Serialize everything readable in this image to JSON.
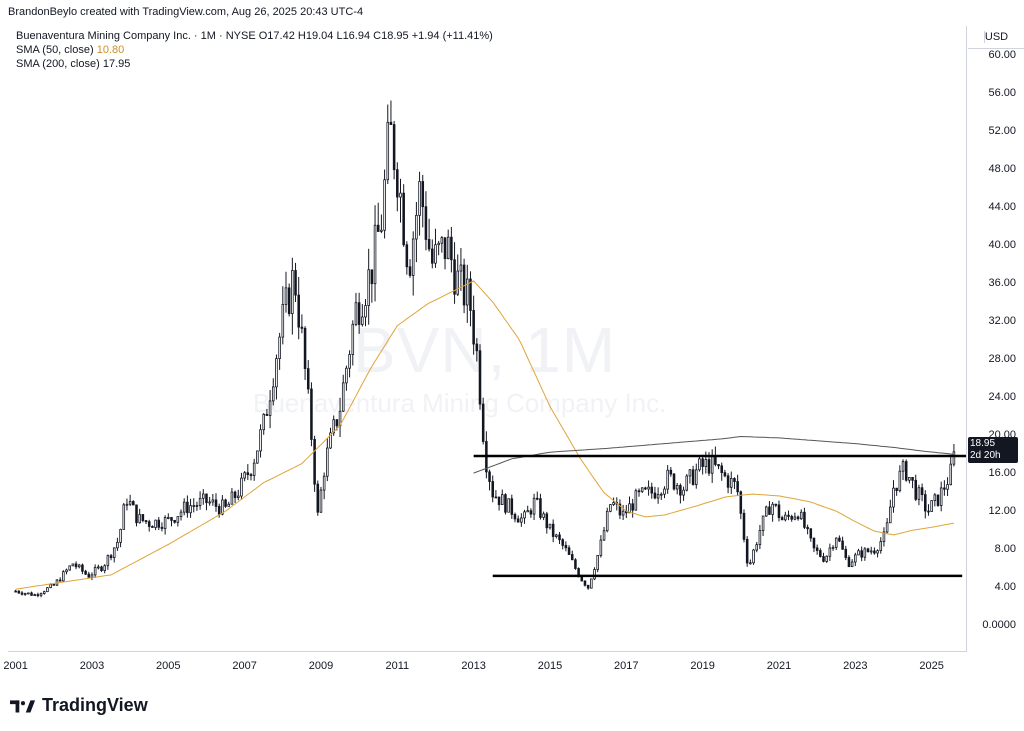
{
  "header": {
    "credit": "BrandonBeylo created with TradingView.com, Aug 26, 2025 20:43 UTC-4"
  },
  "legend": {
    "symbol": "Buenaventura Mining Company Inc. · 1M · NYSE",
    "ohlc": {
      "o_label": "O",
      "o": "17.42",
      "h_label": "H",
      "h": "19.04",
      "l_label": "L",
      "l": "16.94",
      "c_label": "C",
      "c": "18.95",
      "change": "+1.94 (+11.41%)"
    },
    "sma50_label": "SMA (50, close)",
    "sma50_value": "10.80",
    "sma200_label": "SMA (200, close)",
    "sma200_value": "17.95"
  },
  "watermark": {
    "ticker": "BVN, 1M",
    "name": "Buenaventura Mining Company Inc."
  },
  "currency": "USD",
  "price_label": {
    "price": "18.95",
    "countdown": "2d 20h"
  },
  "brand": {
    "name": "TradingView"
  },
  "colors": {
    "candle": "#131722",
    "sma50": "#e0a43a",
    "sma200": "#555555",
    "line": "#000000"
  },
  "chart_data": {
    "type": "candlestick",
    "xlim": [
      2000.8,
      2025.9
    ],
    "ylim": [
      -2.7,
      63.0
    ],
    "x_ticks": [
      "2001",
      "2003",
      "2005",
      "2007",
      "2009",
      "2011",
      "2013",
      "2015",
      "2017",
      "2019",
      "2021",
      "2023",
      "2025"
    ],
    "y_ticks": [
      "60.00",
      "56.00",
      "52.00",
      "48.00",
      "44.00",
      "40.00",
      "36.00",
      "32.00",
      "28.00",
      "24.00",
      "20.00",
      "16.00",
      "12.00",
      "8.00",
      "4.00",
      "0.0000"
    ],
    "close_path": [
      [
        2001.0,
        3.6
      ],
      [
        2001.5,
        3.2
      ],
      [
        2002.0,
        4.2
      ],
      [
        2002.5,
        6.5
      ],
      [
        2002.9,
        5.2
      ],
      [
        2003.3,
        6.3
      ],
      [
        2003.7,
        9.0
      ],
      [
        2003.9,
        13.5
      ],
      [
        2004.2,
        11.2
      ],
      [
        2004.5,
        10.8
      ],
      [
        2005.0,
        11.0
      ],
      [
        2005.5,
        12.5
      ],
      [
        2006.0,
        13.0
      ],
      [
        2006.5,
        12.2
      ],
      [
        2006.9,
        14.5
      ],
      [
        2007.2,
        17.0
      ],
      [
        2007.5,
        21.0
      ],
      [
        2007.8,
        28.0
      ],
      [
        2008.0,
        32.0
      ],
      [
        2008.3,
        37.0
      ],
      [
        2008.5,
        30.0
      ],
      [
        2008.8,
        18.0
      ],
      [
        2008.9,
        11.0
      ],
      [
        2009.1,
        17.0
      ],
      [
        2009.5,
        23.0
      ],
      [
        2009.9,
        33.0
      ],
      [
        2010.3,
        37.0
      ],
      [
        2010.6,
        43.0
      ],
      [
        2010.8,
        52.0
      ],
      [
        2011.0,
        48.0
      ],
      [
        2011.3,
        38.0
      ],
      [
        2011.6,
        46.0
      ],
      [
        2011.9,
        38.0
      ],
      [
        2012.3,
        40.0
      ],
      [
        2012.6,
        36.0
      ],
      [
        2012.9,
        34.0
      ],
      [
        2013.1,
        28.0
      ],
      [
        2013.3,
        18.0
      ],
      [
        2013.5,
        14.0
      ],
      [
        2013.9,
        12.5
      ],
      [
        2014.3,
        11.0
      ],
      [
        2014.6,
        13.0
      ],
      [
        2015.0,
        10.0
      ],
      [
        2015.4,
        8.0
      ],
      [
        2015.8,
        5.0
      ],
      [
        2016.0,
        4.0
      ],
      [
        2016.3,
        8.0
      ],
      [
        2016.6,
        13.0
      ],
      [
        2016.9,
        11.5
      ],
      [
        2017.3,
        13.5
      ],
      [
        2017.7,
        14.0
      ],
      [
        2018.1,
        15.5
      ],
      [
        2018.5,
        14.5
      ],
      [
        2018.9,
        16.5
      ],
      [
        2019.2,
        17.0
      ],
      [
        2019.6,
        15.5
      ],
      [
        2019.9,
        14.5
      ],
      [
        2020.2,
        6.0
      ],
      [
        2020.5,
        10.0
      ],
      [
        2020.8,
        13.0
      ],
      [
        2021.1,
        11.0
      ],
      [
        2021.5,
        12.0
      ],
      [
        2021.9,
        8.0
      ],
      [
        2022.2,
        7.0
      ],
      [
        2022.5,
        9.5
      ],
      [
        2022.8,
        6.5
      ],
      [
        2023.1,
        7.5
      ],
      [
        2023.5,
        8.0
      ],
      [
        2023.8,
        9.5
      ],
      [
        2024.0,
        14.5
      ],
      [
        2024.3,
        16.5
      ],
      [
        2024.6,
        14.0
      ],
      [
        2024.9,
        12.0
      ],
      [
        2025.2,
        13.5
      ],
      [
        2025.5,
        16.0
      ],
      [
        2025.65,
        18.95
      ]
    ],
    "sma50_path": [
      [
        2001.0,
        3.8
      ],
      [
        2003.5,
        5.3
      ],
      [
        2005.0,
        8.5
      ],
      [
        2006.5,
        12.0
      ],
      [
        2007.5,
        15.0
      ],
      [
        2008.5,
        17.0
      ],
      [
        2009.5,
        21.0
      ],
      [
        2010.3,
        27.0
      ],
      [
        2011.0,
        31.5
      ],
      [
        2011.8,
        33.8
      ],
      [
        2012.5,
        35.2
      ],
      [
        2013.0,
        36.2
      ],
      [
        2013.5,
        34.0
      ],
      [
        2014.2,
        30.0
      ],
      [
        2015.0,
        23.0
      ],
      [
        2015.8,
        17.5
      ],
      [
        2016.4,
        14.0
      ],
      [
        2017.0,
        12.0
      ],
      [
        2017.5,
        11.4
      ],
      [
        2018.0,
        11.6
      ],
      [
        2018.8,
        12.5
      ],
      [
        2019.6,
        13.5
      ],
      [
        2020.3,
        13.8
      ],
      [
        2021.0,
        13.6
      ],
      [
        2021.8,
        13.0
      ],
      [
        2022.5,
        12.0
      ],
      [
        2023.0,
        10.9
      ],
      [
        2023.5,
        9.9
      ],
      [
        2024.0,
        9.5
      ],
      [
        2024.5,
        10.0
      ],
      [
        2025.0,
        10.3
      ],
      [
        2025.65,
        10.8
      ]
    ],
    "sma200_path": [
      [
        2013.0,
        16.0
      ],
      [
        2014.0,
        17.5
      ],
      [
        2015.0,
        18.2
      ],
      [
        2016.5,
        18.6
      ],
      [
        2018.0,
        19.1
      ],
      [
        2019.5,
        19.6
      ],
      [
        2020.0,
        19.85
      ],
      [
        2021.0,
        19.7
      ],
      [
        2022.0,
        19.4
      ],
      [
        2023.0,
        19.1
      ],
      [
        2024.0,
        18.7
      ],
      [
        2024.8,
        18.3
      ],
      [
        2025.65,
        17.95
      ]
    ],
    "resistance_line": {
      "y": 17.8,
      "x": [
        2013.0,
        2025.9
      ]
    },
    "support_line": {
      "y": 5.2,
      "x": [
        2013.5,
        2025.8
      ]
    }
  }
}
